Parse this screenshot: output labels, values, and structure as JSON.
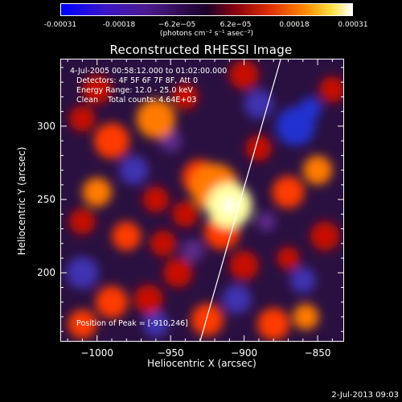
{
  "colorbar": {
    "ticks": [
      "-0.00031",
      "-0.00018",
      "−6.2e−05",
      "6.2e−05",
      "0.00018",
      "0.00031"
    ],
    "unit": "(photons cm⁻² s⁻¹ asec⁻²)"
  },
  "chart_data": {
    "type": "heatmap",
    "title": "Reconstructed RHESSI Image",
    "xlabel": "Heliocentric X (arcsec)",
    "ylabel": "Heliocentric Y (arcsec)",
    "xlim": [
      -1025,
      -832
    ],
    "ylim": [
      153,
      346
    ],
    "x_ticks": [
      -1000,
      -950,
      -900,
      -850
    ],
    "y_ticks": [
      200,
      250,
      300
    ],
    "x_tick_labels": [
      "−1000",
      "−950",
      "−900",
      "−850"
    ],
    "y_tick_labels": [
      "200",
      "250",
      "300"
    ],
    "colorbar_range": [
      -0.00031,
      0.00031
    ],
    "peak": [
      -910,
      246
    ],
    "limb_line": [
      [
        -930,
        153
      ],
      [
        -875,
        346
      ]
    ],
    "blobs": [
      {
        "x": -910,
        "y": 246,
        "r": 14,
        "v": 1.0
      },
      {
        "x": -920,
        "y": 258,
        "r": 15,
        "v": 0.62
      },
      {
        "x": -930,
        "y": 265,
        "r": 11,
        "v": 0.5
      },
      {
        "x": -915,
        "y": 228,
        "r": 11,
        "v": 0.45
      },
      {
        "x": -960,
        "y": 305,
        "r": 12,
        "v": 0.62
      },
      {
        "x": -990,
        "y": 290,
        "r": 11,
        "v": 0.45
      },
      {
        "x": -1000,
        "y": 325,
        "r": 9,
        "v": 0.4
      },
      {
        "x": -1010,
        "y": 305,
        "r": 8,
        "v": 0.35
      },
      {
        "x": -1000,
        "y": 255,
        "r": 9,
        "v": 0.55
      },
      {
        "x": -980,
        "y": 225,
        "r": 9,
        "v": 0.48
      },
      {
        "x": -1010,
        "y": 235,
        "r": 8,
        "v": 0.3
      },
      {
        "x": -990,
        "y": 180,
        "r": 10,
        "v": 0.5
      },
      {
        "x": -965,
        "y": 182,
        "r": 9,
        "v": 0.38
      },
      {
        "x": -1010,
        "y": 165,
        "r": 9,
        "v": 0.42
      },
      {
        "x": -955,
        "y": 220,
        "r": 8,
        "v": 0.35
      },
      {
        "x": -945,
        "y": 200,
        "r": 9,
        "v": 0.4
      },
      {
        "x": -925,
        "y": 168,
        "r": 10,
        "v": 0.5
      },
      {
        "x": -900,
        "y": 205,
        "r": 9,
        "v": 0.38
      },
      {
        "x": -870,
        "y": 255,
        "r": 10,
        "v": 0.45
      },
      {
        "x": -850,
        "y": 270,
        "r": 9,
        "v": 0.55
      },
      {
        "x": -890,
        "y": 285,
        "r": 8,
        "v": 0.35
      },
      {
        "x": -880,
        "y": 165,
        "r": 10,
        "v": 0.42
      },
      {
        "x": -858,
        "y": 170,
        "r": 8,
        "v": 0.55
      },
      {
        "x": -845,
        "y": 225,
        "r": 9,
        "v": 0.38
      },
      {
        "x": -840,
        "y": 325,
        "r": 8,
        "v": 0.3
      },
      {
        "x": -900,
        "y": 335,
        "r": 9,
        "v": 0.3
      },
      {
        "x": -870,
        "y": 210,
        "r": 7,
        "v": 0.32
      },
      {
        "x": -940,
        "y": 320,
        "r": 8,
        "v": 0.3
      },
      {
        "x": -960,
        "y": 250,
        "r": 8,
        "v": 0.3
      },
      {
        "x": -940,
        "y": 240,
        "r": 8,
        "v": 0.38
      },
      {
        "x": -865,
        "y": 300,
        "r": 12,
        "v": -0.75
      },
      {
        "x": -855,
        "y": 312,
        "r": 7,
        "v": -0.95
      },
      {
        "x": -975,
        "y": 270,
        "r": 9,
        "v": -0.55
      },
      {
        "x": -890,
        "y": 315,
        "r": 9,
        "v": -0.5
      },
      {
        "x": -1010,
        "y": 200,
        "r": 10,
        "v": -0.45
      },
      {
        "x": -905,
        "y": 182,
        "r": 9,
        "v": -0.45
      },
      {
        "x": -860,
        "y": 195,
        "r": 8,
        "v": -0.5
      },
      {
        "x": -950,
        "y": 290,
        "r": 7,
        "v": -0.35
      },
      {
        "x": -935,
        "y": 215,
        "r": 7,
        "v": -0.35
      },
      {
        "x": -960,
        "y": 165,
        "r": 8,
        "v": -0.4
      },
      {
        "x": -885,
        "y": 235,
        "r": 6,
        "v": -0.3
      }
    ]
  },
  "info": {
    "time_range": "4-Jul-2005 00:58:12.000 to 01:02:00.000",
    "detectors": "Detectors: 4F 5F 6F 7F 8F, Att 0",
    "energy_range": "Energy Range: 12.0 - 25.0 keV",
    "method": "Clean    Total counts: 4.64E+03",
    "peak_text": "Position of Peak = [-910,246]"
  },
  "footer": {
    "date": "2-Jul-2013 09:03"
  }
}
